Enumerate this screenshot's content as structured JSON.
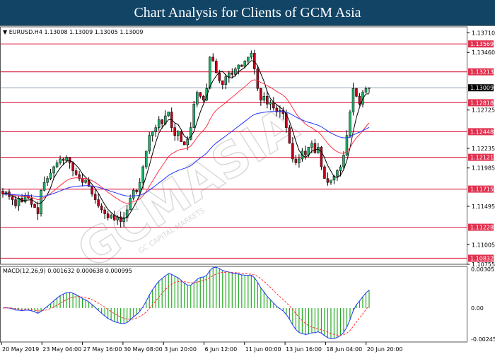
{
  "title": "Chart Analysis for Clients of GCM Asia",
  "watermark": {
    "main": "GCMASIA",
    "sub": "GC CAPITAL MARKETS"
  },
  "colors": {
    "header": "#124466",
    "level_line": "#e0314f",
    "bull": "#1eb26a",
    "bear": "#c0001a",
    "ma_fast": "#000000",
    "ma_mid": "#ff3344",
    "ma_slow": "#2233ff",
    "macd_hist": "#22aa22",
    "macd_signal": "#ff3333"
  },
  "chart_data": [
    {
      "type": "candlestick",
      "symbol_info": "EURUSD.H4  1.13008 1.13009 1.13005 1.13009",
      "ylim": [
        1.10755,
        1.1376
      ],
      "y_ticks": [
        "1.13710",
        "1.13460",
        "1.12725",
        "1.12235",
        "1.11985",
        "1.11495",
        "1.11005",
        "1.10755"
      ],
      "current_price": "1.13009",
      "levels": [
        "1.13569",
        "1.13213",
        "1.12818",
        "1.12448",
        "1.12121",
        "1.11715",
        "1.11228",
        "1.10832"
      ],
      "x_ticks": [
        "20 May 2019",
        "23 May 04:00",
        "27 May 16:00",
        "30 May 08:00",
        "3 Jun 20:00",
        "6 Jun 12:00",
        "11 Jun 00:00",
        "13 Jun 16:00",
        "18 Jun 04:00",
        "20 Jun 20:00"
      ],
      "closes": [
        1.1165,
        1.1168,
        1.1162,
        1.1158,
        1.115,
        1.116,
        1.1155,
        1.1163,
        1.116,
        1.1152,
        1.1148,
        1.114,
        1.117,
        1.118,
        1.1185,
        1.1192,
        1.12,
        1.1205,
        1.121,
        1.1208,
        1.1212,
        1.1205,
        1.1195,
        1.119,
        1.1185,
        1.118,
        1.1183,
        1.1175,
        1.1165,
        1.1158,
        1.115,
        1.1145,
        1.114,
        1.1135,
        1.1138,
        1.1132,
        1.1136,
        1.113,
        1.1135,
        1.1145,
        1.116,
        1.117,
        1.1168,
        1.118,
        1.12,
        1.122,
        1.124,
        1.1245,
        1.125,
        1.126,
        1.1255,
        1.1265,
        1.127,
        1.125,
        1.124,
        1.1245,
        1.1232,
        1.1228,
        1.1235,
        1.125,
        1.128,
        1.1295,
        1.129,
        1.1285,
        1.13,
        1.134,
        1.1335,
        1.132,
        1.131,
        1.1305,
        1.1315,
        1.132,
        1.1318,
        1.1325,
        1.133,
        1.1328,
        1.1335,
        1.134,
        1.1345,
        1.1325,
        1.13,
        1.1285,
        1.129,
        1.128,
        1.1282,
        1.1275,
        1.127,
        1.1272,
        1.1268,
        1.125,
        1.123,
        1.121,
        1.1205,
        1.121,
        1.122,
        1.1215,
        1.1225,
        1.123,
        1.1218,
        1.1225,
        1.12,
        1.1185,
        1.118,
        1.1183,
        1.1188,
        1.1195,
        1.12,
        1.1215,
        1.124,
        1.127,
        1.13,
        1.129,
        1.128,
        1.1295,
        1.13,
        1.13009
      ]
    },
    {
      "type": "macd",
      "label": "MACD(12,26,9) 0.001632 0.000638 0.000995",
      "ylim": [
        -0.002454,
        0.003055
      ],
      "y_ticks": [
        "0.003055",
        "0.00",
        "-0.002454"
      ]
    }
  ]
}
